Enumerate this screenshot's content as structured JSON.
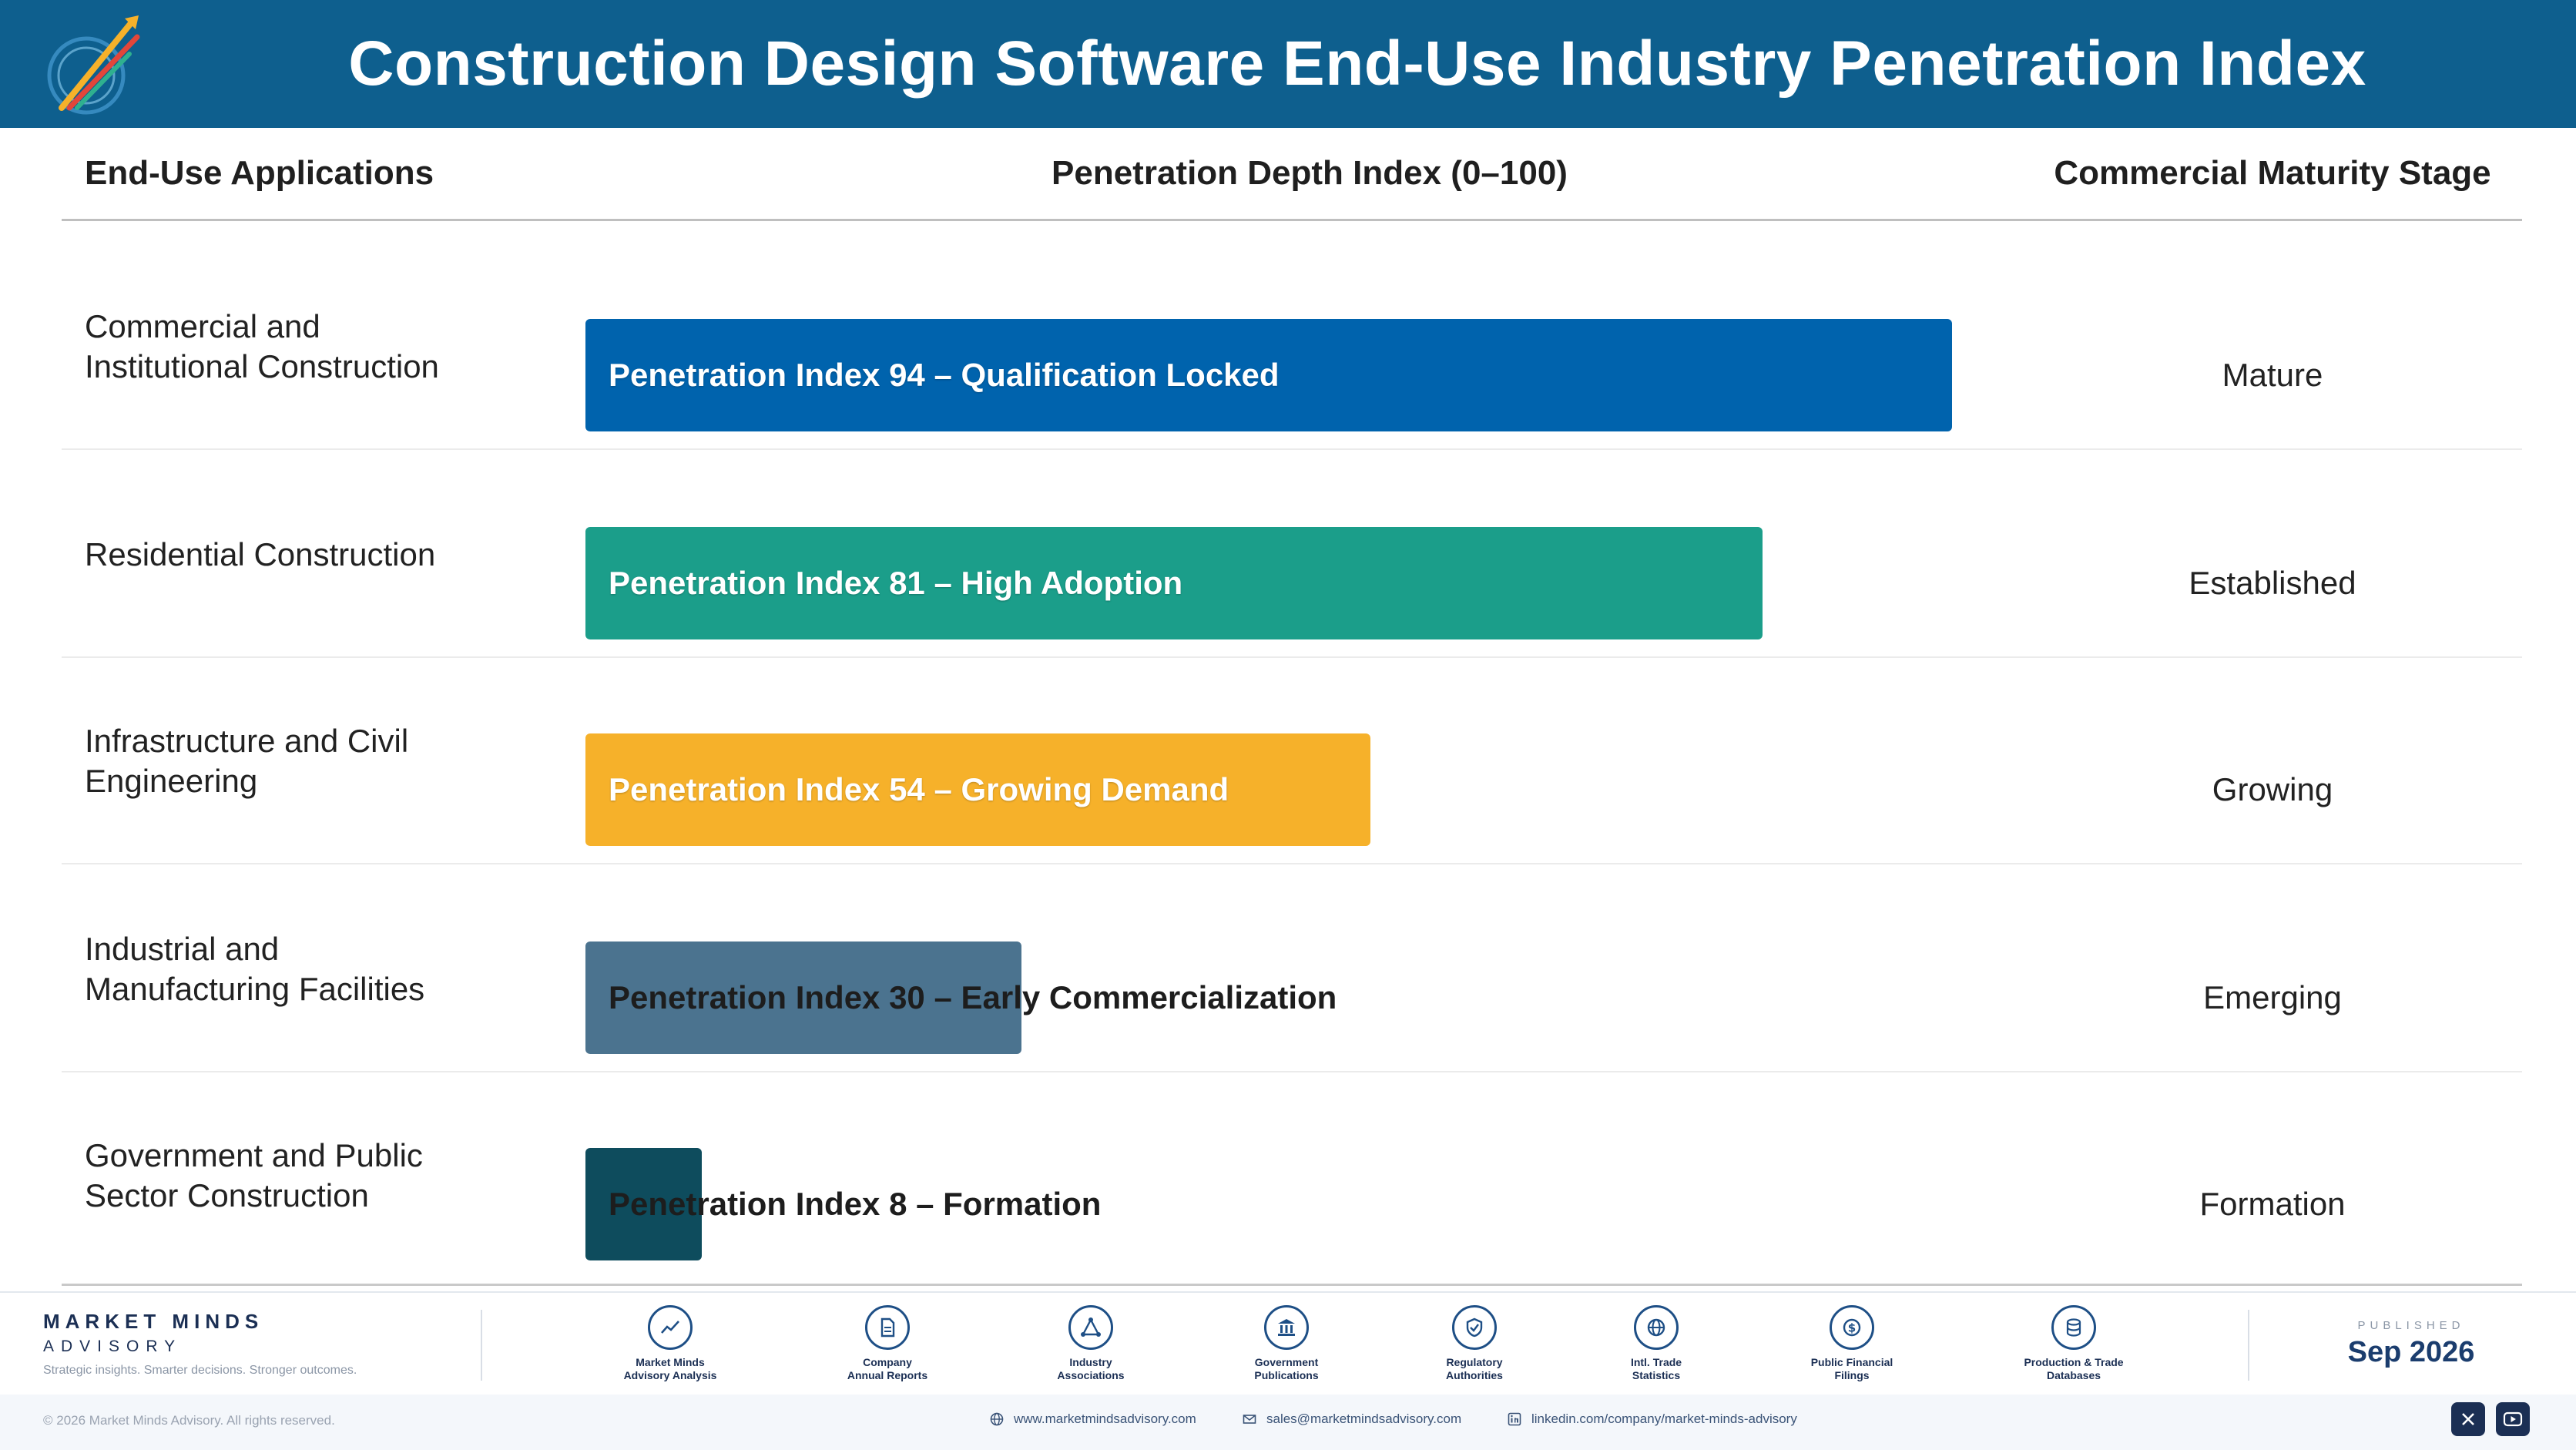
{
  "header": {
    "title": "Construction Design Software End-Use Industry Penetration Index"
  },
  "columns": {
    "applications": "End-Use Applications",
    "penetration": "Penetration Depth Index (0–100)",
    "stage": "Commercial Maturity Stage"
  },
  "chart_data": {
    "type": "bar",
    "orientation": "horizontal",
    "xlim": [
      0,
      100
    ],
    "categories": [
      "Commercial and\nInstitutional Construction",
      "Residential Construction",
      "Infrastructure and Civil\nEngineering",
      "Industrial and\nManufacturing Facilities",
      "Government and Public\nSector Construction"
    ],
    "values": [
      94,
      81,
      54,
      30,
      8
    ],
    "bar_labels": [
      "Penetration Index 94 – Qualification Locked",
      "Penetration Index 81 – High Adoption",
      "Penetration Index 54 – Growing Demand",
      "Penetration Index 30 – Early Commercialization",
      "Penetration Index 8 – Formation"
    ],
    "stages": [
      "Mature",
      "Established",
      "Growing",
      "Emerging",
      "Formation"
    ],
    "colors": [
      "#0063ad",
      "#1b9e8a",
      "#f6b12a",
      "#4b738f",
      "#0e4c5d"
    ]
  },
  "footer": {
    "brand_name": "MARKET MINDS",
    "brand_sub": "ADVISORY",
    "tagline": "Strategic insights. Smarter decisions. Stronger outcomes.",
    "sources": [
      {
        "label": "Market Minds\nAdvisory Analysis",
        "icon": "chart-line-icon"
      },
      {
        "label": "Company\nAnnual Reports",
        "icon": "document-icon"
      },
      {
        "label": "Industry\nAssociations",
        "icon": "network-icon"
      },
      {
        "label": "Government\nPublications",
        "icon": "government-building-icon"
      },
      {
        "label": "Regulatory\nAuthorities",
        "icon": "shield-check-icon"
      },
      {
        "label": "Intl. Trade\nStatistics",
        "icon": "globe-icon"
      },
      {
        "label": "Public Financial\nFilings",
        "icon": "dollar-coin-icon"
      },
      {
        "label": "Production & Trade\nDatabases",
        "icon": "database-icon"
      }
    ],
    "published_label": "PUBLISHED",
    "published_date": "Sep 2026",
    "copyright": "© 2026 Market Minds Advisory. All rights reserved.",
    "website": "www.marketmindsadvisory.com",
    "email": "sales@marketmindsadvisory.com",
    "linkedin": "linkedin.com/company/market-minds-advisory",
    "social_icons": [
      "x-icon",
      "youtube-icon"
    ]
  }
}
